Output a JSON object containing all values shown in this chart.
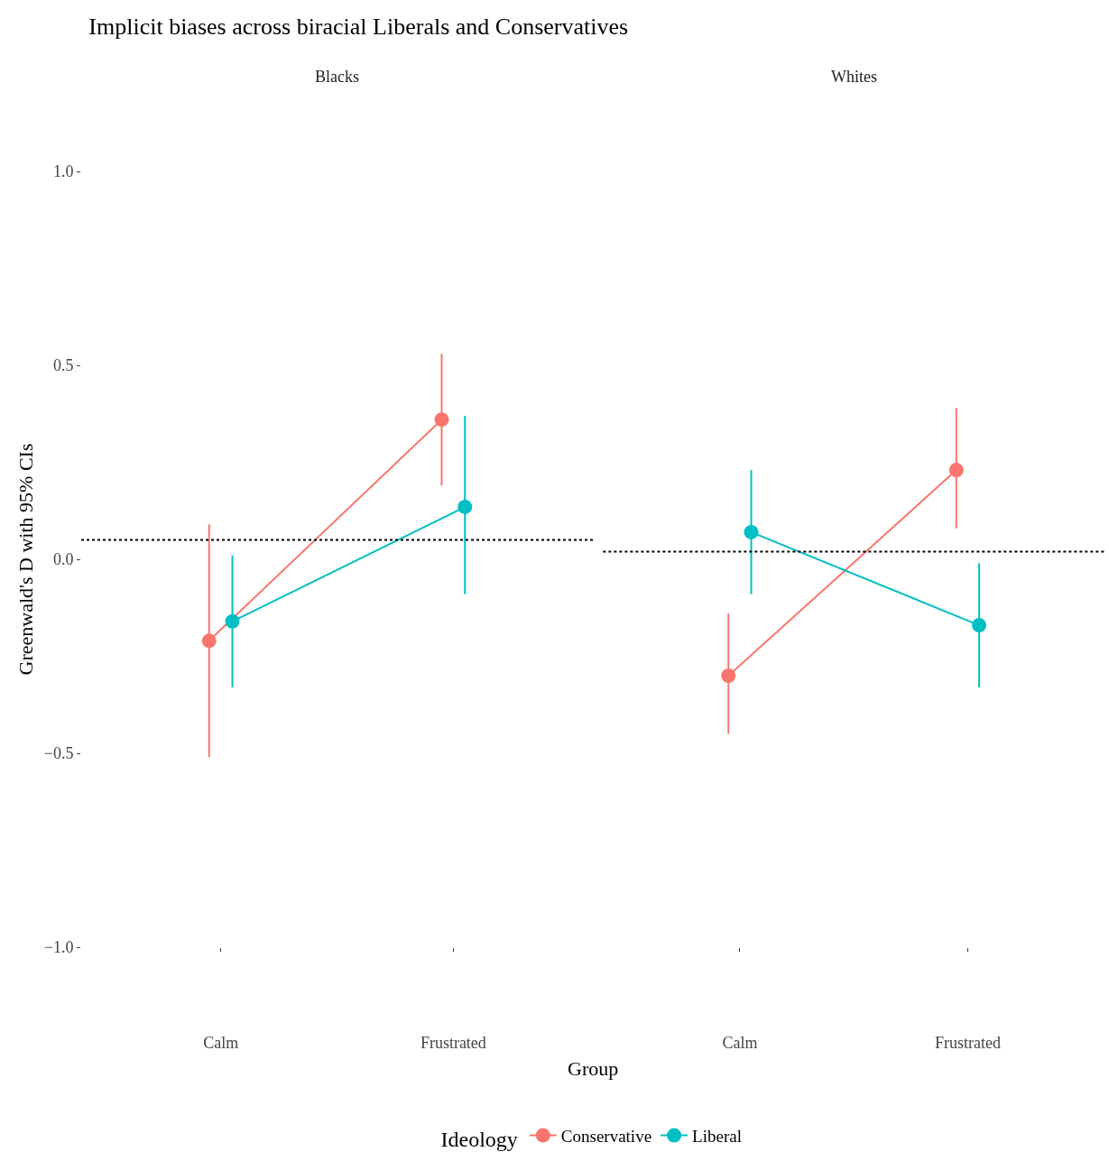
{
  "chart_data": [
    {
      "type": "line",
      "title": "Implicit biases across biracial Liberals and Conservatives",
      "subtitle": "Blacks",
      "ylabel": "Greenwald's D with 95% CIs",
      "legend_title": "Ideology",
      "legend": "bottom",
      "marker": "circle",
      "grid": false,
      "categories": [
        "Calm",
        "Frustrated"
      ],
      "ylim": [
        -1,
        1
      ],
      "yticks": [
        {
          "value": -1,
          "label": "−1.0"
        },
        {
          "value": -0.5,
          "label": "−0.5"
        },
        {
          "value": 0,
          "label": "0.0"
        },
        {
          "value": 0.5,
          "label": "0.5"
        },
        {
          "value": 1,
          "label": "1.0"
        }
      ],
      "series": [
        {
          "name": "Conservative",
          "color": "#f8766d",
          "values": [
            -0.21,
            0.36
          ],
          "errors": [
            [
              -0.51,
              0.09
            ],
            [
              0.19,
              0.53
            ]
          ]
        },
        {
          "name": "Liberal",
          "color": "#00bfc4",
          "values": [
            -0.16,
            0.135
          ],
          "errors": [
            [
              -0.33,
              0.01
            ],
            [
              -0.09,
              0.37
            ]
          ]
        }
      ],
      "ref_lines": [
        {
          "axis": "y",
          "value": 0.05,
          "color": "#000000",
          "line_style": "dotted"
        }
      ]
    },
    {
      "type": "line",
      "subtitle": "Whites",
      "xlabel": "Group",
      "marker": "circle",
      "grid": false,
      "tick_labels": "x",
      "categories": [
        "Calm",
        "Frustrated"
      ],
      "ylim": [
        -1,
        1
      ],
      "series": [
        {
          "color": "#f8766d",
          "values": [
            -0.3,
            0.23
          ],
          "errors": [
            [
              -0.45,
              -0.14
            ],
            [
              0.08,
              0.39
            ]
          ]
        },
        {
          "color": "#00bfc4",
          "values": [
            0.07,
            -0.17
          ],
          "errors": [
            [
              -0.09,
              0.23
            ],
            [
              -0.33,
              -0.01
            ]
          ]
        }
      ],
      "ref_lines": [
        {
          "axis": "y",
          "value": 0.02,
          "color": "#000000",
          "line_style": "dotted"
        }
      ]
    }
  ]
}
